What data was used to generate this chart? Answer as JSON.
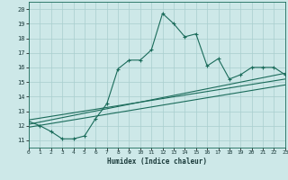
{
  "xlabel": "Humidex (Indice chaleur)",
  "xlim": [
    0,
    23
  ],
  "ylim": [
    10.5,
    20.5
  ],
  "xticks": [
    0,
    1,
    2,
    3,
    4,
    5,
    6,
    7,
    8,
    9,
    10,
    11,
    12,
    13,
    14,
    15,
    16,
    17,
    18,
    19,
    20,
    21,
    22,
    23
  ],
  "yticks": [
    11,
    12,
    13,
    14,
    15,
    16,
    17,
    18,
    19,
    20
  ],
  "bg_color": "#cde8e8",
  "grid_color": "#a8cece",
  "line_color": "#1a6b5a",
  "main_x": [
    0,
    1,
    2,
    3,
    4,
    5,
    6,
    7,
    8,
    9,
    10,
    11,
    12,
    13,
    14,
    15,
    16,
    17,
    18,
    19,
    20,
    21,
    22,
    23
  ],
  "main_y": [
    12.3,
    12.0,
    11.6,
    11.1,
    11.1,
    11.3,
    12.5,
    13.5,
    15.9,
    16.5,
    16.5,
    17.2,
    19.7,
    19.0,
    18.1,
    18.3,
    16.1,
    16.6,
    15.2,
    15.5,
    16.0,
    16.0,
    16.0,
    15.5
  ],
  "trend1_x": [
    0,
    23
  ],
  "trend1_y": [
    12.1,
    15.6
  ],
  "trend2_x": [
    0,
    23
  ],
  "trend2_y": [
    12.4,
    15.2
  ],
  "trend3_x": [
    0,
    23
  ],
  "trend3_y": [
    11.9,
    14.8
  ]
}
